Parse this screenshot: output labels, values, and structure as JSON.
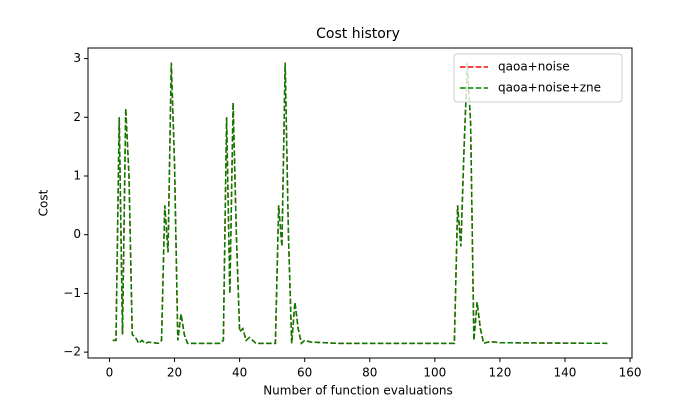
{
  "chart_data": {
    "type": "line",
    "title": "Cost history",
    "xlabel": "Number of function evaluations",
    "ylabel": "Cost",
    "x": [
      1,
      2,
      3,
      4,
      5,
      6,
      7,
      8,
      9,
      10,
      11,
      12,
      15,
      16,
      17,
      18,
      19,
      20,
      21,
      22,
      23,
      24,
      25,
      34,
      35,
      36,
      37,
      38,
      39,
      40,
      41,
      42,
      43,
      45,
      51,
      52,
      53,
      54,
      55,
      56,
      57,
      58,
      59,
      60,
      62,
      70,
      106,
      107,
      108,
      109,
      110,
      111,
      112,
      113,
      114,
      115,
      117,
      120,
      153
    ],
    "series": [
      {
        "name": "qaoa+noise",
        "color": "#ff0000",
        "values": [
          -1.8,
          -1.8,
          2.0,
          -1.7,
          2.15,
          1.0,
          -1.7,
          -1.75,
          -1.85,
          -1.8,
          -1.85,
          -1.83,
          -1.85,
          -1.8,
          0.5,
          -0.3,
          2.93,
          1.2,
          -1.8,
          -1.35,
          -1.7,
          -1.85,
          -1.85,
          -1.85,
          -1.8,
          2.0,
          -1.0,
          2.25,
          0.0,
          -1.65,
          -1.6,
          -1.8,
          -1.75,
          -1.85,
          -1.85,
          0.5,
          -0.2,
          2.93,
          0.0,
          -1.85,
          -1.15,
          -1.6,
          -1.85,
          -1.8,
          -1.83,
          -1.85,
          -1.85,
          0.5,
          -0.2,
          1.5,
          2.93,
          1.9,
          -1.8,
          -1.15,
          -1.6,
          -1.85,
          -1.82,
          -1.84,
          -1.85
        ]
      },
      {
        "name": "qaoa+noise+zne",
        "color": "#008000",
        "values": [
          -1.8,
          -1.8,
          2.0,
          -1.7,
          2.15,
          1.0,
          -1.7,
          -1.75,
          -1.85,
          -1.8,
          -1.85,
          -1.83,
          -1.85,
          -1.8,
          0.5,
          -0.3,
          2.93,
          1.2,
          -1.8,
          -1.35,
          -1.7,
          -1.85,
          -1.85,
          -1.85,
          -1.8,
          2.0,
          -1.0,
          2.25,
          0.0,
          -1.65,
          -1.6,
          -1.8,
          -1.75,
          -1.85,
          -1.85,
          0.5,
          -0.2,
          2.93,
          0.0,
          -1.85,
          -1.15,
          -1.6,
          -1.85,
          -1.8,
          -1.83,
          -1.85,
          -1.85,
          0.5,
          -0.2,
          1.5,
          2.93,
          1.9,
          -1.8,
          -1.15,
          -1.6,
          -1.85,
          -1.82,
          -1.84,
          -1.85
        ]
      }
    ],
    "xlim": [
      -6.6,
      160.6
    ],
    "ylim": [
      -2.1,
      3.18
    ],
    "xticks": [
      0,
      20,
      40,
      60,
      80,
      100,
      120,
      140,
      160
    ],
    "yticks": [
      {
        "value": -2,
        "label": "−2"
      },
      {
        "value": -1,
        "label": "−1"
      },
      0,
      1,
      2,
      3
    ],
    "legend": "upper right",
    "line_style": "dashed"
  }
}
